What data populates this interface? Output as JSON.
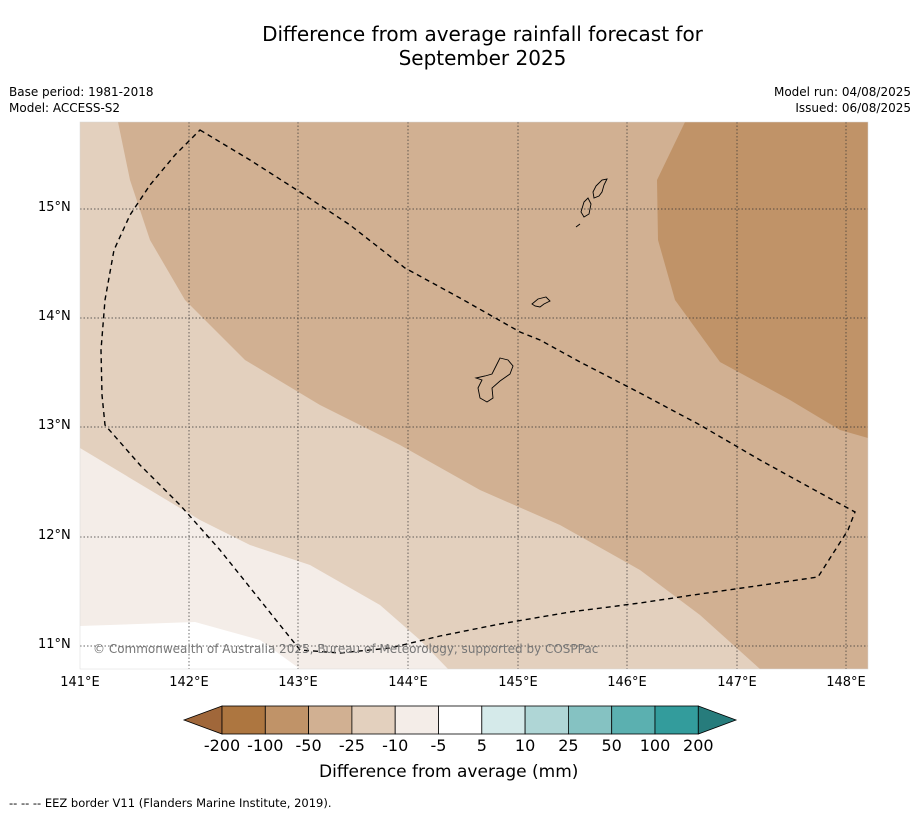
{
  "title_line1": "Difference from average rainfall forecast for",
  "title_line2": "September 2025",
  "meta_left": {
    "base_period": "Base period: 1981-2018",
    "model": "Model: ACCESS-S2"
  },
  "meta_right": {
    "model_run": "Model run: 04/08/2025",
    "issued": "Issued: 06/08/2025"
  },
  "map": {
    "lat_ticks": [
      "15°N",
      "14°N",
      "13°N",
      "12°N",
      "11°N"
    ],
    "lon_ticks": [
      "141°E",
      "142°E",
      "143°E",
      "144°E",
      "145°E",
      "146°E",
      "147°E",
      "148°E"
    ],
    "copyright": "© Commonwealth of Australia 2025, Bureau of Meteorology, supported by COSPPac"
  },
  "colorbar": {
    "labels": [
      "-200",
      "-100",
      "-50",
      "-25",
      "-10",
      "-5",
      "5",
      "10",
      "25",
      "50",
      "100",
      "200"
    ],
    "colors": [
      "#a0673a",
      "#ad7640",
      "#c09368",
      "#d1b092",
      "#e3d0be",
      "#f4ede8",
      "#ffffff",
      "#d5eaea",
      "#afd6d6",
      "#85c2c2",
      "#5bb0b0",
      "#339c9c",
      "#277c7c"
    ],
    "title": "Difference from average (mm)"
  },
  "footnote": "--  --  -- EEZ border V11 (Flanders Marine Institute, 2019)."
}
